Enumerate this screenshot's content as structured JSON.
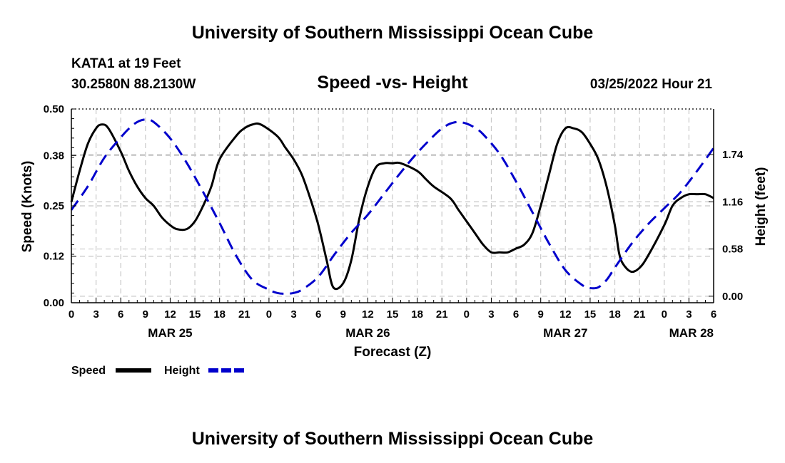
{
  "header": {
    "title": "University of Southern Mississippi Ocean Cube",
    "station": "KATA1 at 19 Feet",
    "coords": "30.2580N  88.2130W",
    "subtitle": "Speed -vs- Height",
    "datetime": "03/25/2022 Hour 21"
  },
  "footer": {
    "title": "University of Southern Mississippi Ocean Cube"
  },
  "chart_data": {
    "type": "line",
    "title": "Speed -vs- Height",
    "xlabel": "Forecast (Z)",
    "ylabel_left": "Speed (Knots)",
    "ylabel_right": "Height (feet)",
    "x_unit": "hours from 03/25 00Z",
    "xlim": [
      0,
      78
    ],
    "x_ticks": [
      0,
      3,
      6,
      9,
      12,
      15,
      18,
      21,
      24,
      27,
      30,
      33,
      36,
      39,
      42,
      45,
      48,
      51,
      54,
      57,
      60,
      63,
      66,
      69,
      72,
      75,
      78
    ],
    "x_tick_labels": [
      "0",
      "3",
      "6",
      "9",
      "12",
      "15",
      "18",
      "21",
      "0",
      "3",
      "6",
      "9",
      "12",
      "15",
      "18",
      "21",
      "0",
      "3",
      "6",
      "9",
      "12",
      "15",
      "18",
      "21",
      "0",
      "3",
      "6"
    ],
    "date_labels": [
      {
        "text": "MAR 25",
        "x": 12
      },
      {
        "text": "MAR 26",
        "x": 36
      },
      {
        "text": "MAR 27",
        "x": 60
      },
      {
        "text": "MAR 28",
        "x": 78
      }
    ],
    "ylim_left": [
      0,
      0.5
    ],
    "y_ticks_left": [
      0,
      0.12,
      0.25,
      0.38,
      0.5
    ],
    "y_tick_labels_left": [
      "0.00",
      "0.12",
      "0.25",
      "0.38",
      "0.50"
    ],
    "ylim_right": [
      -0.08,
      2.3
    ],
    "y_ticks_right": [
      0,
      0.58,
      1.16,
      1.74
    ],
    "y_tick_labels_right": [
      "0.00",
      "0.58",
      "1.16",
      "1.74"
    ],
    "legend_position": "bottom-left",
    "colors": {
      "speed": "#000000",
      "height": "#0000cc",
      "grid": "#c8c8c8"
    },
    "series": [
      {
        "name": "Speed",
        "axis": "left",
        "style": "solid",
        "x": [
          0,
          1,
          2,
          3,
          3.7,
          4.5,
          6,
          7,
          8,
          9,
          10,
          11,
          12,
          12.8,
          14,
          15,
          16,
          17,
          18,
          20,
          21,
          22,
          23,
          25,
          26,
          27,
          28,
          29,
          30,
          31,
          31.8,
          33,
          34,
          35,
          36,
          37,
          38,
          39,
          40,
          42,
          43,
          44,
          46,
          47,
          48,
          49,
          50,
          51,
          52,
          53,
          54,
          55,
          56,
          57,
          58,
          59,
          60,
          61,
          62,
          63,
          64,
          65,
          66,
          66.5,
          67,
          68,
          69,
          70,
          72,
          73,
          74,
          75,
          76,
          77,
          78
        ],
        "y": [
          0.26,
          0.34,
          0.41,
          0.45,
          0.46,
          0.45,
          0.39,
          0.34,
          0.3,
          0.27,
          0.25,
          0.22,
          0.2,
          0.19,
          0.19,
          0.21,
          0.25,
          0.3,
          0.37,
          0.43,
          0.45,
          0.46,
          0.46,
          0.43,
          0.4,
          0.37,
          0.33,
          0.27,
          0.2,
          0.11,
          0.04,
          0.05,
          0.11,
          0.22,
          0.3,
          0.35,
          0.36,
          0.36,
          0.36,
          0.34,
          0.32,
          0.3,
          0.27,
          0.24,
          0.21,
          0.18,
          0.15,
          0.13,
          0.13,
          0.13,
          0.14,
          0.15,
          0.18,
          0.25,
          0.33,
          0.41,
          0.45,
          0.45,
          0.44,
          0.41,
          0.37,
          0.3,
          0.2,
          0.13,
          0.1,
          0.08,
          0.09,
          0.12,
          0.2,
          0.25,
          0.27,
          0.28,
          0.28,
          0.28,
          0.27
        ]
      },
      {
        "name": "Height",
        "axis": "right",
        "style": "dashed",
        "x": [
          0,
          2,
          4,
          6,
          7,
          8,
          9,
          10,
          12,
          14,
          16,
          18,
          20,
          22,
          24,
          25,
          26,
          27,
          28,
          30,
          32,
          34,
          36,
          38,
          40,
          42,
          44,
          45,
          46,
          47,
          48,
          49,
          50,
          52,
          54,
          56,
          58,
          60,
          62,
          63,
          64,
          65,
          66,
          68,
          70,
          72,
          74,
          76,
          78
        ],
        "y": [
          1.06,
          1.35,
          1.7,
          1.95,
          2.06,
          2.14,
          2.17,
          2.14,
          1.94,
          1.64,
          1.28,
          0.9,
          0.5,
          0.2,
          0.08,
          0.04,
          0.03,
          0.04,
          0.08,
          0.24,
          0.52,
          0.78,
          1.0,
          1.26,
          1.52,
          1.76,
          1.97,
          2.06,
          2.12,
          2.14,
          2.12,
          2.07,
          1.99,
          1.75,
          1.41,
          1.03,
          0.65,
          0.32,
          0.14,
          0.1,
          0.11,
          0.2,
          0.35,
          0.64,
          0.88,
          1.08,
          1.28,
          1.54,
          1.82
        ]
      }
    ]
  }
}
